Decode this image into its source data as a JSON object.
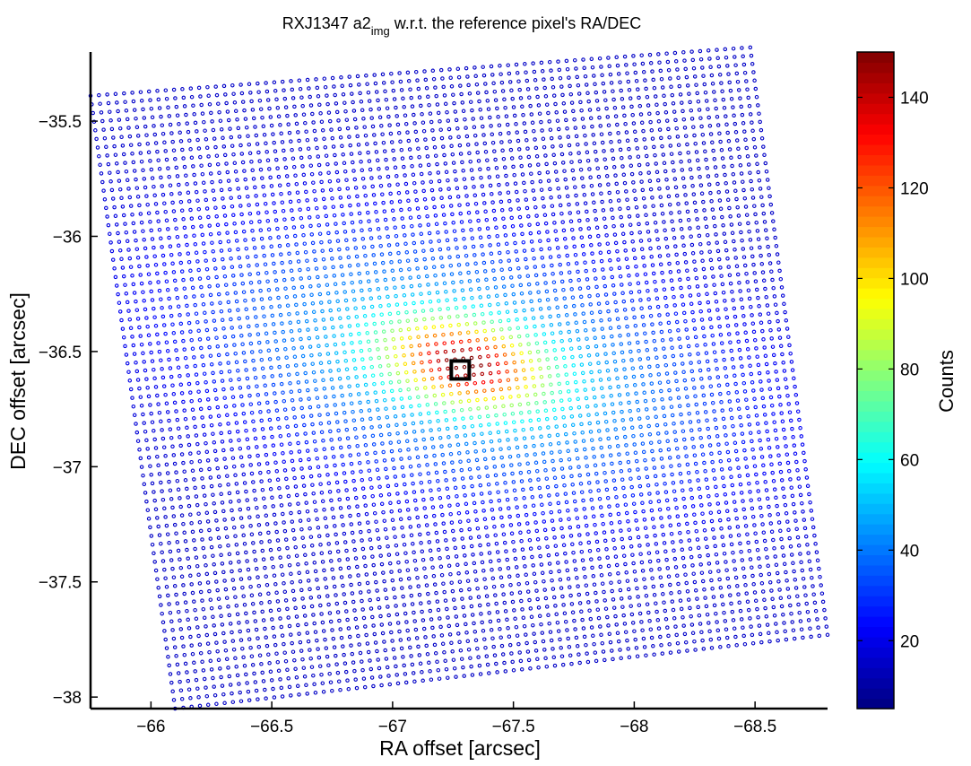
{
  "chart_data": {
    "type": "scatter",
    "title_main": "RXJ1347 a2",
    "title_sub": "img",
    "title_rest": " w.r.t. the reference pixel's RA/DEC",
    "xlabel": "RA offset [arcsec]",
    "ylabel": "DEC offset [arcsec]",
    "x_reversed": true,
    "xlim": [
      -65.75,
      -68.8
    ],
    "ylim": [
      -38.05,
      -35.2
    ],
    "x_ticks": [
      -66,
      -66.5,
      -67,
      -67.5,
      -68,
      -68.5
    ],
    "x_tick_labels": [
      "−66",
      "−66.5",
      "−67",
      "−67.5",
      "−68",
      "−68.5"
    ],
    "y_ticks": [
      -35.5,
      -36,
      -36.5,
      -37,
      -37.5,
      -38
    ],
    "y_tick_labels": [
      "−35.5",
      "−36",
      "−36.5",
      "−37",
      "−37.5",
      "−38"
    ],
    "grid": false,
    "colormap": "jet",
    "colorbar": {
      "label": "Counts",
      "range": [
        5,
        150
      ],
      "ticks": [
        20,
        40,
        60,
        80,
        100,
        120,
        140
      ],
      "tick_labels": [
        "20",
        "40",
        "60",
        "80",
        "100",
        "120",
        "140"
      ]
    },
    "grid_points": {
      "corners": [
        {
          "x": -65.75,
          "y": -35.39
        },
        {
          "x": -68.48,
          "y": -35.18
        },
        {
          "x": -68.8,
          "y": -37.73
        },
        {
          "x": -66.1,
          "y": -38.05
        }
      ],
      "rows": 72,
      "cols": 80,
      "background_counts": 15,
      "peak_center": {
        "x": -67.3,
        "y": -36.55
      },
      "peak_counts": 150
    },
    "reference_pixel": {
      "x": -67.28,
      "y": -36.58
    }
  }
}
